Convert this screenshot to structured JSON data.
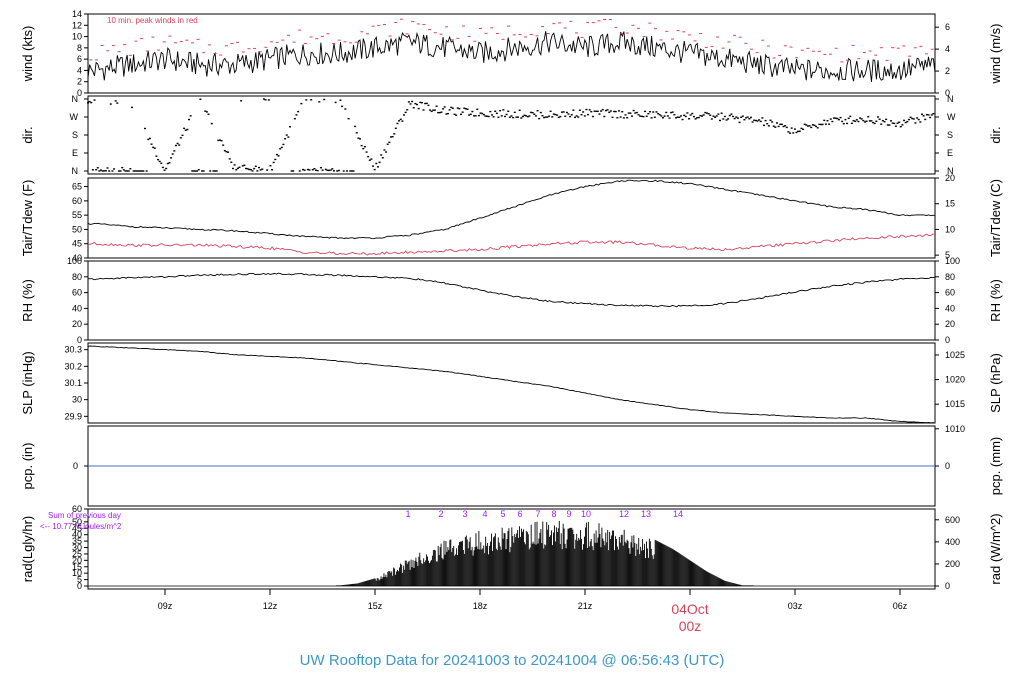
{
  "title": "UW Rooftop Data for 20241003  to  20241004 @ 06:56:43  (UTC)",
  "x_axis": {
    "ticks": [
      "09z",
      "12z",
      "15z",
      "18z",
      "21z",
      "00z",
      "03z",
      "06z"
    ],
    "date_label": "04Oct",
    "date_sub": "00z"
  },
  "colors": {
    "data": "#000000",
    "dewpoint": "#d6445c",
    "precip": "#4472c4",
    "annot_red": "#d6445c",
    "annot_purple": "#a020f0",
    "title": "#3d97c8"
  },
  "panels": {
    "wind": {
      "ylabel_left": "wind (kts)",
      "ylabel_right": "wind (m/s)",
      "note": "10 min. peak winds in red",
      "left_ticks": [
        "0",
        "2",
        "4",
        "6",
        "8",
        "10",
        "12",
        "14"
      ],
      "right_ticks": [
        "0",
        "2",
        "4",
        "6"
      ]
    },
    "dir": {
      "ylabel_left": "dir.",
      "ylabel_right": "dir.",
      "ticks": [
        "N",
        "E",
        "S",
        "W",
        "N"
      ]
    },
    "temp": {
      "ylabel_left": "Tair/Tdew (F)",
      "ylabel_right": "Tair/Tdew (C)",
      "left_ticks": [
        "40",
        "45",
        "50",
        "55",
        "60",
        "65"
      ],
      "right_ticks": [
        "5",
        "10",
        "15",
        "20"
      ]
    },
    "rh": {
      "ylabel_left": "RH (%)",
      "ylabel_right": "RH (%)",
      "ticks": [
        "0",
        "20",
        "40",
        "60",
        "80",
        "100"
      ]
    },
    "slp": {
      "ylabel_left": "SLP (inHg)",
      "ylabel_right": "SLP (hPa)",
      "left_ticks": [
        "29.9",
        "30",
        "30.1",
        "30.2",
        "30.3"
      ],
      "right_ticks": [
        "1010",
        "1015",
        "1020",
        "1025"
      ]
    },
    "pcp": {
      "ylabel_left": "pcp. (in)",
      "ylabel_right": "pcp. (mm)",
      "left_ticks": [
        "0"
      ],
      "right_ticks": [
        "0"
      ]
    },
    "rad": {
      "ylabel_left": "rad(Lgly/hr)",
      "ylabel_right": "rad (W/m^2)",
      "left_ticks": [
        "0",
        "5",
        "10",
        "15",
        "20",
        "25",
        "30",
        "35",
        "40",
        "45",
        "50",
        "60"
      ],
      "right_ticks": [
        "0",
        "200",
        "400",
        "600"
      ],
      "sum_label": "Sum of previous day",
      "sum_value": "<-- 10.77 MJoules/m^2",
      "hour_marks": [
        "1",
        "2",
        "3",
        "4",
        "5",
        "6",
        "7",
        "8",
        "9",
        "10",
        "12",
        "13",
        "14"
      ]
    }
  },
  "chart_data": [
    {
      "type": "line",
      "title": "",
      "ylabel": "wind (kts)",
      "ylim": [
        0,
        14
      ],
      "x_range_hours": [
        6.8,
        31.0
      ],
      "series": [
        {
          "x": [
            7,
            8,
            9,
            10,
            11,
            12,
            13,
            14,
            15,
            16,
            17,
            18,
            19,
            20,
            21,
            22,
            23,
            24,
            25,
            26,
            27,
            28,
            29,
            30,
            31
          ],
          "values": [
            4,
            5,
            6,
            5,
            5,
            6,
            7,
            7,
            8,
            9,
            8,
            7,
            8,
            9,
            8,
            9,
            8,
            7,
            6,
            5,
            4,
            4,
            4,
            4,
            5
          ]
        },
        {
          "name": "10 min. peak winds in red",
          "x": [
            7,
            8,
            9,
            10,
            11,
            12,
            13,
            14,
            15,
            16,
            17,
            18,
            19,
            20,
            21,
            22,
            23,
            24,
            25,
            26,
            27,
            28,
            29,
            30,
            31
          ],
          "values": [
            7,
            8,
            9,
            8,
            8,
            9,
            10,
            10,
            11,
            12,
            11,
            10,
            11,
            12,
            11,
            12,
            11,
            10,
            9,
            8,
            7,
            7,
            7,
            7,
            8
          ]
        }
      ]
    },
    {
      "type": "scatter",
      "title": "",
      "ylabel": "dir.",
      "ylim": [
        0,
        360
      ],
      "x_range_hours": [
        6.8,
        31.0
      ],
      "series": [
        {
          "x": [
            7,
            8,
            9,
            10,
            11,
            12,
            13,
            14,
            15,
            16,
            17,
            18,
            19,
            20,
            21,
            22,
            23,
            24,
            25,
            26,
            27,
            28,
            29,
            30,
            31
          ],
          "values": [
            350,
            355,
            5,
            350,
            10,
            5,
            355,
            350,
            10,
            340,
            300,
            290,
            285,
            280,
            290,
            285,
            280,
            275,
            270,
            250,
            200,
            250,
            260,
            240,
            280
          ]
        }
      ]
    },
    {
      "type": "line",
      "title": "",
      "ylabel": "Tair/Tdew (F)",
      "ylim": [
        40,
        68
      ],
      "x_range_hours": [
        6.8,
        31.0
      ],
      "series": [
        {
          "x": [
            7,
            8,
            9,
            10,
            11,
            12,
            13,
            14,
            15,
            16,
            17,
            18,
            19,
            20,
            21,
            22,
            23,
            24,
            25,
            26,
            27,
            28,
            29,
            30,
            31
          ],
          "values": [
            52,
            51,
            50.5,
            50,
            49.5,
            48.5,
            47.5,
            47,
            47,
            48,
            50,
            54,
            58,
            62,
            65,
            67,
            67,
            66,
            64,
            62,
            60,
            58,
            57,
            55,
            55
          ]
        },
        {
          "x": [
            7,
            8,
            9,
            10,
            11,
            12,
            13,
            14,
            15,
            16,
            17,
            18,
            19,
            20,
            21,
            22,
            23,
            24,
            25,
            26,
            27,
            28,
            29,
            30,
            31
          ],
          "values": [
            45,
            44.5,
            44.5,
            44.5,
            44,
            43.5,
            42,
            41.5,
            41.5,
            42,
            42.5,
            43,
            44,
            45,
            45.5,
            45.5,
            44.5,
            43.5,
            43,
            44,
            45,
            46,
            47,
            47.5,
            48
          ]
        }
      ]
    },
    {
      "type": "line",
      "title": "",
      "ylabel": "RH (%)",
      "ylim": [
        0,
        100
      ],
      "x_range_hours": [
        6.8,
        31.0
      ],
      "series": [
        {
          "x": [
            7,
            8,
            9,
            10,
            11,
            12,
            13,
            14,
            15,
            16,
            17,
            18,
            19,
            20,
            21,
            22,
            23,
            24,
            25,
            26,
            27,
            28,
            29,
            30,
            31
          ],
          "values": [
            77,
            79,
            80,
            82,
            83,
            84,
            83,
            82,
            80,
            78,
            72,
            63,
            55,
            49,
            46,
            44,
            43,
            43,
            46,
            53,
            61,
            68,
            73,
            77,
            79
          ]
        }
      ]
    },
    {
      "type": "line",
      "title": "",
      "ylabel": "SLP (inHg)",
      "ylim": [
        29.86,
        30.34
      ],
      "x_range_hours": [
        6.8,
        31.0
      ],
      "series": [
        {
          "x": [
            7,
            8,
            9,
            10,
            11,
            12,
            13,
            14,
            15,
            16,
            17,
            18,
            19,
            20,
            21,
            22,
            23,
            24,
            25,
            26,
            27,
            28,
            29,
            30,
            31
          ],
          "values": [
            30.32,
            30.31,
            30.3,
            30.29,
            30.27,
            30.26,
            30.25,
            30.23,
            30.21,
            30.19,
            30.17,
            30.14,
            30.11,
            30.08,
            30.04,
            30.0,
            29.97,
            29.94,
            29.92,
            29.91,
            29.9,
            29.89,
            29.89,
            29.87,
            29.86
          ]
        }
      ]
    },
    {
      "type": "line",
      "title": "",
      "ylabel": "pcp. (in)",
      "ylim": [
        0,
        1
      ],
      "x_range_hours": [
        6.8,
        31.0
      ],
      "series": [
        {
          "x": [
            6.8,
            31.0
          ],
          "values": [
            0,
            0
          ]
        }
      ]
    },
    {
      "type": "bar",
      "title": "",
      "ylabel": "rad(Lgly/hr)",
      "ylim": [
        0,
        60
      ],
      "x_range_hours": [
        6.8,
        31.0
      ],
      "series": [
        {
          "x": [
            14,
            14.5,
            15,
            15.5,
            16,
            16.5,
            17,
            17.5,
            18,
            18.5,
            19,
            19.5,
            20,
            20.5,
            21,
            21.5,
            22,
            22.5,
            23,
            23.5,
            24,
            24.5,
            25,
            25.5
          ],
          "values": [
            0.5,
            2,
            6,
            14,
            22,
            30,
            36,
            40,
            43,
            46,
            48,
            50,
            51,
            52,
            51,
            49,
            46,
            42,
            36,
            29,
            20,
            11,
            4,
            0.5
          ]
        }
      ]
    }
  ]
}
